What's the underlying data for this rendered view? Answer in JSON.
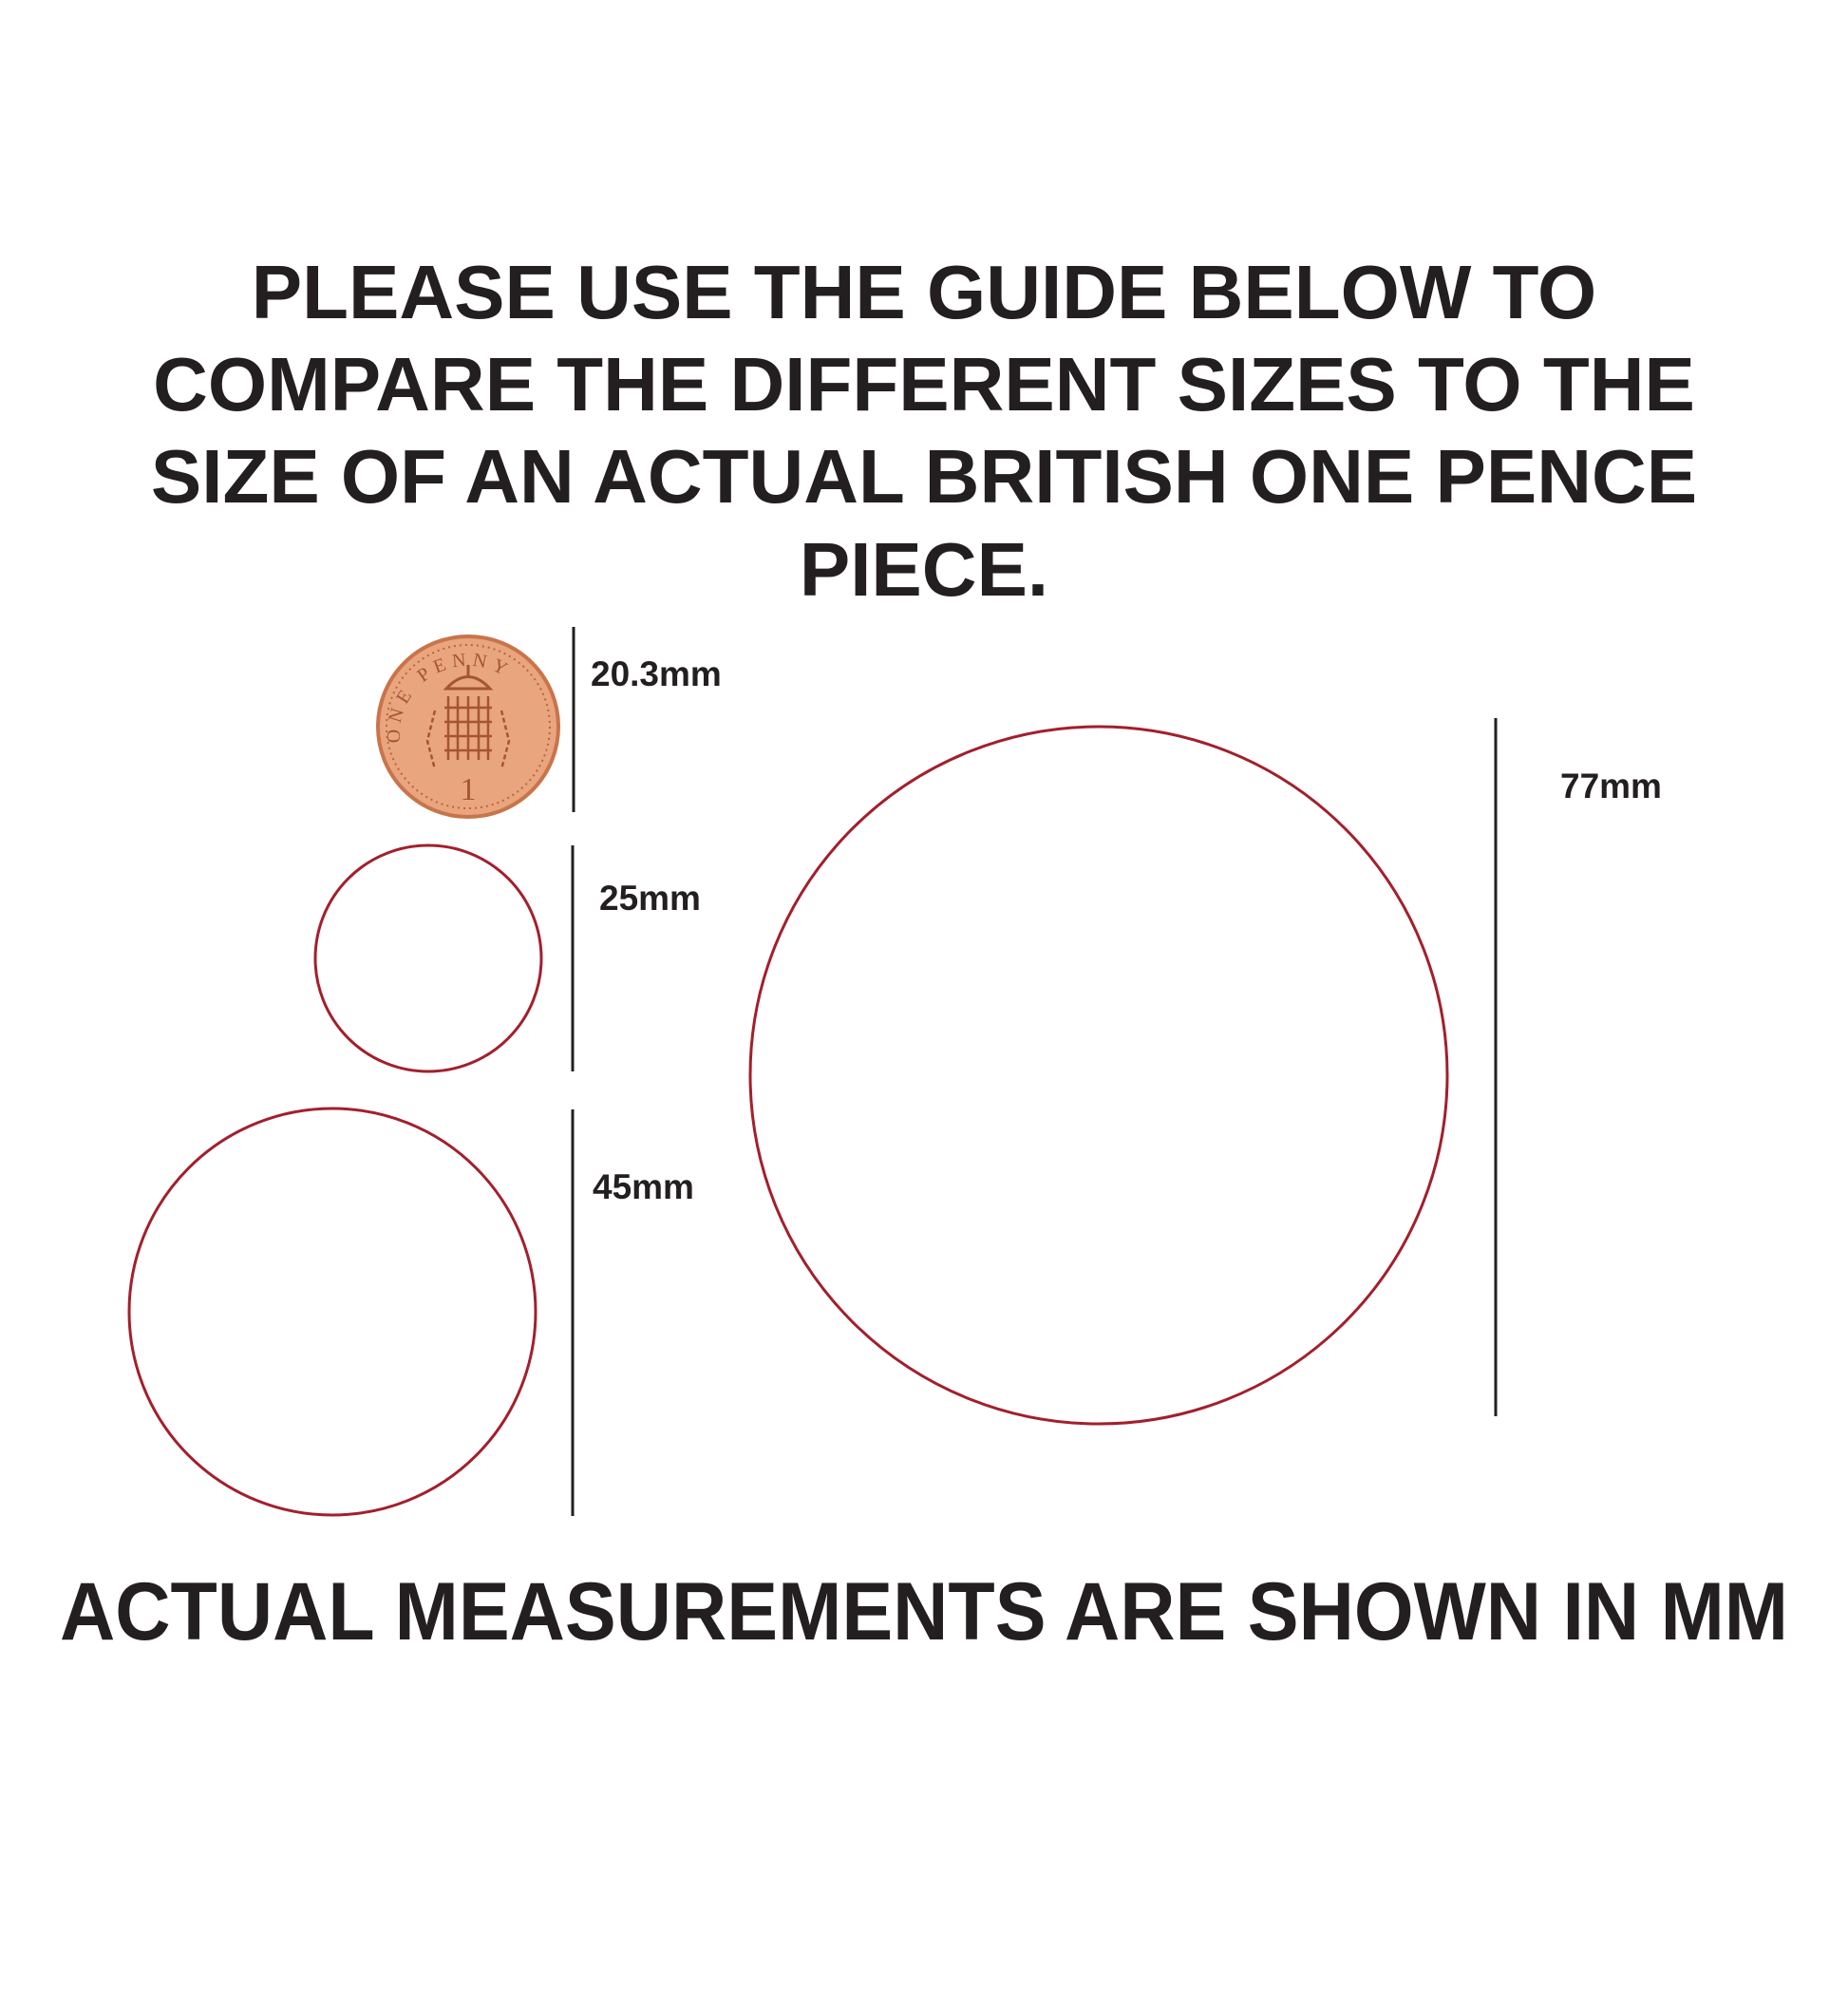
{
  "title_lines": [
    "PLEASE USE THE GUIDE BELOW TO",
    "COMPARE THE DIFFERENT SIZES TO THE",
    "SIZE OF AN ACTUAL BRITISH ONE PENCE",
    "PIECE."
  ],
  "coin": {
    "label": "20.3mm",
    "inscription": "ONE PENNY",
    "numeral": "1",
    "color": "#e9a57e"
  },
  "circles": [
    {
      "label": "25mm",
      "diameter_mm": 25
    },
    {
      "label": "45mm",
      "diameter_mm": 45
    },
    {
      "label": "77mm",
      "diameter_mm": 77
    }
  ],
  "circle_color": "#a31f2c",
  "footer": "ACTUAL MEASUREMENTS ARE SHOWN IN MM"
}
